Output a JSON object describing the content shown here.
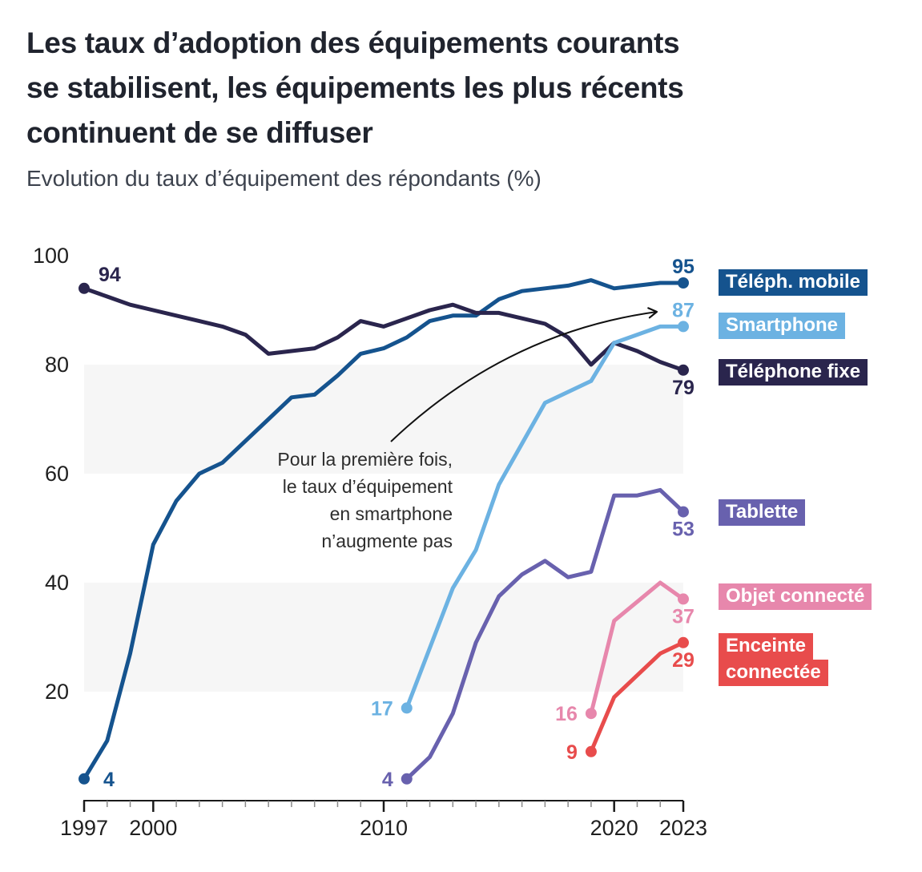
{
  "header": {
    "title": "Les taux d’adoption des équipements courants\nse stabilisent, les équipements les plus récents\ncontinuent de se diffuser",
    "subtitle": "Evolution du taux d’équipement des répondants (%)"
  },
  "annotation": {
    "text": "Pour la première fois,\nle taux d’équipement\nen smartphone\nn’augmente pas"
  },
  "chart_data": {
    "type": "line",
    "title": "Evolution du taux d'équipement des répondants (%)",
    "x_range": [
      1997,
      2023
    ],
    "y_range": [
      0,
      100
    ],
    "y_ticks": [
      100,
      80,
      60,
      40,
      20
    ],
    "x_major_ticks": [
      1997,
      2000,
      2010,
      2020,
      2023
    ],
    "x_minor_tick_step": 1,
    "grid": "off",
    "bands": [
      [
        60,
        80
      ],
      [
        20,
        40
      ]
    ],
    "band_color": "#f6f6f6",
    "legend_position": "right",
    "series": [
      {
        "id": "telephone-mobile",
        "name": "Téléph. mobile",
        "legend_lines": [
          "Téléph. mobile"
        ],
        "color": "#15538E",
        "start_year": 1997,
        "values": [
          4,
          11,
          27,
          47,
          55,
          60,
          62,
          66,
          70,
          74,
          74.5,
          78,
          82,
          83,
          85,
          88,
          89,
          89,
          92,
          93.5,
          94,
          94.5,
          95.5,
          94,
          94.5,
          95,
          95
        ],
        "start_label": "4",
        "end_label": "95",
        "start_label_pos": "right",
        "end_label_pos": "above"
      },
      {
        "id": "smartphone",
        "name": "Smartphone",
        "legend_lines": [
          "Smartphone"
        ],
        "color": "#6CB2E2",
        "start_year": 2011,
        "values": [
          17,
          28,
          39,
          46,
          58,
          65.5,
          73,
          75,
          77,
          84,
          85.5,
          87,
          87
        ],
        "start_label": "17",
        "end_label": "87",
        "start_label_pos": "left",
        "end_label_pos": "above"
      },
      {
        "id": "telephone-fixe",
        "name": "Téléphone fixe",
        "legend_lines": [
          "Téléphone fixe"
        ],
        "color": "#2A254D",
        "start_year": 1997,
        "values": [
          94,
          92.5,
          91,
          90,
          89,
          88,
          87,
          85.5,
          82,
          82.5,
          83,
          85,
          88,
          87,
          88.5,
          90,
          91,
          89.5,
          89.5,
          88.5,
          87.5,
          85,
          80,
          84,
          82.5,
          80.5,
          79
        ],
        "start_label": "94",
        "end_label": "79",
        "start_label_pos": "above-right",
        "end_label_pos": "below"
      },
      {
        "id": "tablette",
        "name": "Tablette",
        "legend_lines": [
          "Tablette"
        ],
        "color": "#6861AE",
        "start_year": 2011,
        "values": [
          4,
          8,
          16,
          29,
          37.5,
          41.5,
          44,
          41,
          42,
          56,
          56,
          57,
          53
        ],
        "start_label": "4",
        "end_label": "53",
        "start_label_pos": "left",
        "end_label_pos": "below"
      },
      {
        "id": "objet-connecte",
        "name": "Objet connecté",
        "legend_lines": [
          "Objet connecté"
        ],
        "color": "#E787AC",
        "start_year": 2019,
        "values": [
          16,
          33,
          36.5,
          40,
          37
        ],
        "start_label": "16",
        "end_label": "37",
        "start_label_pos": "left",
        "end_label_pos": "below"
      },
      {
        "id": "enceinte-connectee",
        "name": "Enceinte connectée",
        "legend_lines": [
          "Enceinte",
          "connectée"
        ],
        "color": "#E84C4C",
        "start_year": 2019,
        "values": [
          9,
          19,
          23,
          27,
          29
        ],
        "start_label": "9",
        "end_label": "29",
        "start_label_pos": "left",
        "end_label_pos": "below"
      }
    ]
  }
}
